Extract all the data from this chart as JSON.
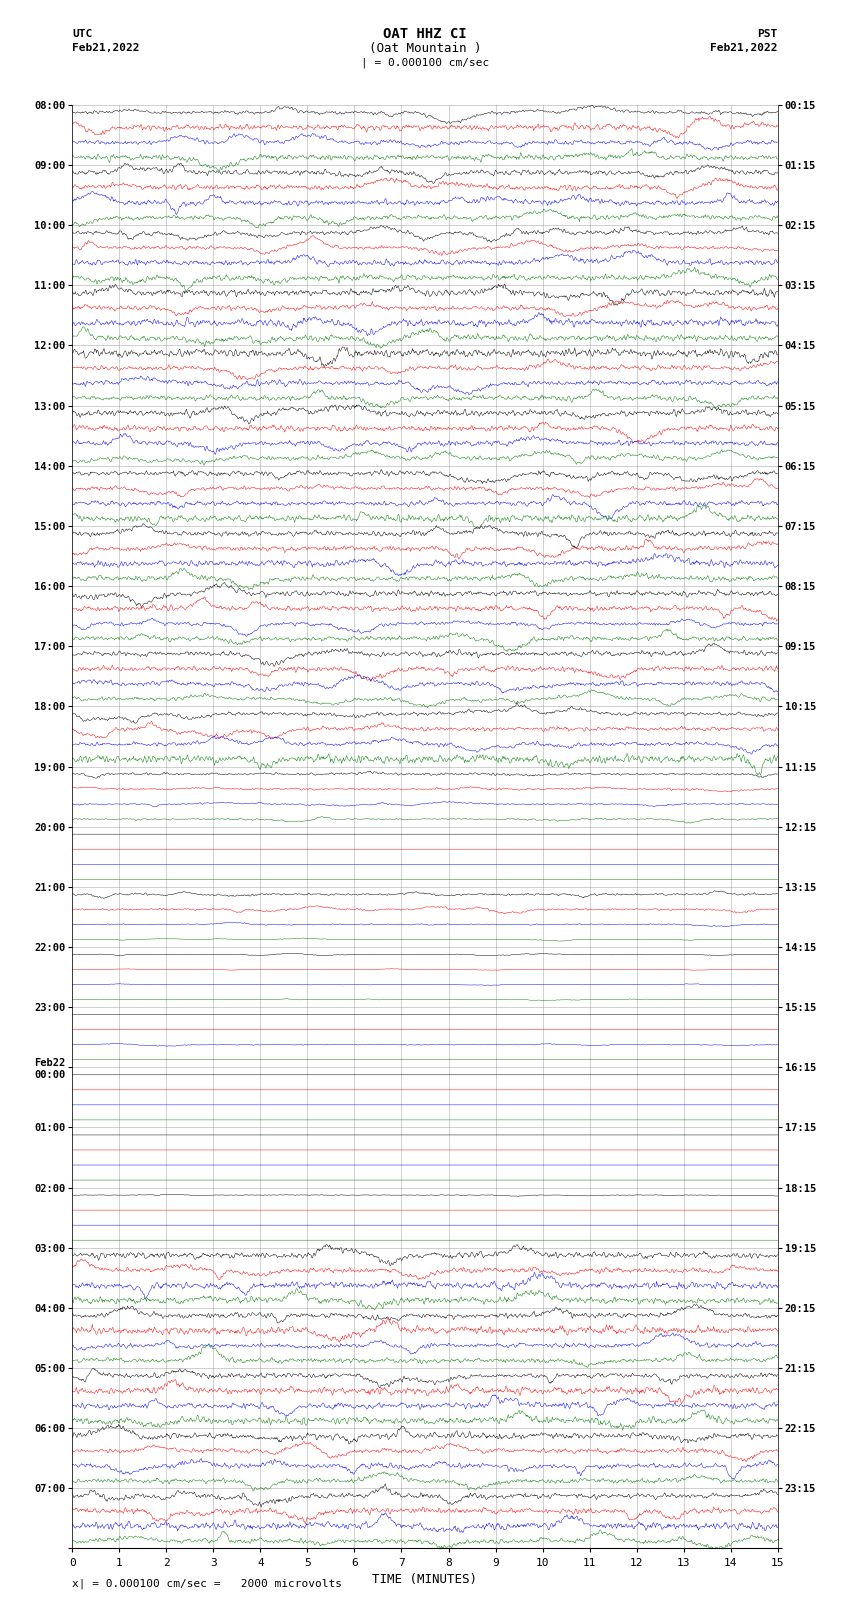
{
  "title_line1": "OAT HHZ CI",
  "title_line2": "(Oat Mountain )",
  "scale_label": "| = 0.000100 cm/sec",
  "utc_label": "UTC",
  "utc_date": "Feb21,2022",
  "pst_label": "PST",
  "pst_date": "Feb21,2022",
  "xlabel": "TIME (MINUTES)",
  "footer": "x| = 0.000100 cm/sec =   2000 microvolts",
  "xlim": [
    0,
    15
  ],
  "xticks": [
    0,
    1,
    2,
    3,
    4,
    5,
    6,
    7,
    8,
    9,
    10,
    11,
    12,
    13,
    14,
    15
  ],
  "colors": [
    "black",
    "red",
    "blue",
    "green"
  ],
  "utc_times_labeled": [
    "08:00",
    "09:00",
    "10:00",
    "11:00",
    "12:00",
    "13:00",
    "14:00",
    "15:00",
    "16:00",
    "17:00",
    "18:00",
    "19:00",
    "20:00",
    "21:00",
    "22:00",
    "23:00",
    "Feb22\n00:00",
    "01:00",
    "02:00",
    "03:00",
    "04:00",
    "05:00",
    "06:00",
    "07:00"
  ],
  "pst_times_labeled": [
    "00:15",
    "01:15",
    "02:15",
    "03:15",
    "04:15",
    "05:15",
    "06:15",
    "07:15",
    "08:15",
    "09:15",
    "10:15",
    "11:15",
    "12:15",
    "13:15",
    "14:15",
    "15:15",
    "16:15",
    "17:15",
    "18:15",
    "19:15",
    "20:15",
    "21:15",
    "22:15",
    "23:15"
  ],
  "n_hour_rows": 24,
  "n_channels": 4,
  "n_cols": 15,
  "bg_color": "white",
  "grid_color": "#888888",
  "figsize": [
    8.5,
    16.13
  ],
  "dpi": 100,
  "active_hours_utc": [
    0,
    1,
    2,
    3,
    4,
    5,
    6,
    7,
    8,
    9,
    10,
    11,
    14,
    15,
    16
  ],
  "quiet_hours_utc": [
    12,
    13,
    17,
    18,
    19,
    20,
    21
  ],
  "medium_hours_utc": [
    22,
    23
  ],
  "amp_active": 0.38,
  "amp_quiet": 0.02,
  "amp_medium": 0.12
}
